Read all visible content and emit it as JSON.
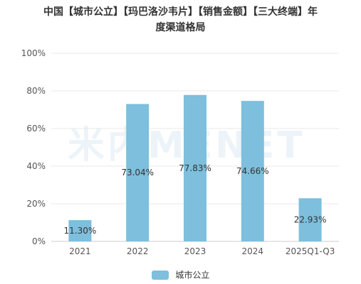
{
  "title_lines": [
    "中国【城市公立】【玛巴洛沙韦片】【销售金额】【三大终端】年",
    "度渠道格局"
  ],
  "watermark": "米内MENET",
  "chart_data": {
    "type": "bar",
    "categories": [
      "2021",
      "2022",
      "2023",
      "2024",
      "2025Q1-Q3"
    ],
    "series": [
      {
        "name": "城市公立",
        "values": [
          11.3,
          73.04,
          77.83,
          74.66,
          22.93
        ],
        "labels": [
          "11.30%",
          "73.04%",
          "77.83%",
          "74.66%",
          "22.93%"
        ],
        "color": "#7dbfdc"
      }
    ],
    "ylim": [
      0,
      100
    ],
    "yticks": [
      "0%",
      "20%",
      "40%",
      "60%",
      "80%",
      "100%"
    ],
    "grid": true,
    "legend_position": "bottom"
  }
}
